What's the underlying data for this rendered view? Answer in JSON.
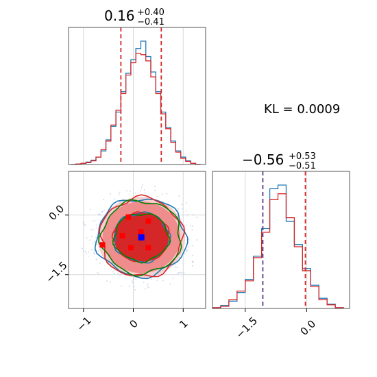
{
  "chart_data": [
    {
      "type": "histogram",
      "panel": "marginal-x",
      "title_main": "0.16",
      "title_plus": "+0.40",
      "title_minus": "−0.41",
      "xlim": [
        -1.3,
        1.45
      ],
      "quantile_lines": [
        -0.25,
        0.16,
        0.56
      ],
      "grid": true,
      "series": [
        {
          "color": "#1f77b4",
          "x": [
            -1.2,
            -1.1,
            -1.0,
            -0.9,
            -0.8,
            -0.7,
            -0.6,
            -0.5,
            -0.4,
            -0.3,
            -0.2,
            -0.1,
            0.0,
            0.1,
            0.2,
            0.3,
            0.4,
            0.5,
            0.6,
            0.7,
            0.8,
            0.9,
            1.0,
            1.1,
            1.2,
            1.3
          ],
          "values": [
            0,
            1,
            2,
            4,
            7,
            12,
            22,
            40,
            62,
            85,
            118,
            148,
            170,
            188,
            200,
            175,
            150,
            118,
            85,
            60,
            38,
            22,
            12,
            6,
            2,
            0
          ]
        },
        {
          "color": "#d62728",
          "x": [
            -1.2,
            -1.1,
            -1.0,
            -0.9,
            -0.8,
            -0.7,
            -0.6,
            -0.5,
            -0.4,
            -0.3,
            -0.2,
            -0.1,
            0.0,
            0.1,
            0.2,
            0.3,
            0.4,
            0.5,
            0.6,
            0.7,
            0.8,
            0.9,
            1.0,
            1.1,
            1.2,
            1.3
          ],
          "values": [
            0,
            1,
            2,
            3,
            6,
            12,
            24,
            38,
            64,
            88,
            115,
            145,
            165,
            180,
            178,
            168,
            142,
            115,
            82,
            58,
            36,
            20,
            10,
            5,
            2,
            0
          ]
        }
      ]
    },
    {
      "type": "contour",
      "panel": "joint",
      "xlim": [
        -1.3,
        1.45
      ],
      "ylim": [
        -2.35,
        1.1
      ],
      "xticks": [
        -1,
        0,
        1
      ],
      "xticklabels": [
        "−1",
        "0",
        "1"
      ],
      "yticks": [
        0.0,
        -1.5
      ],
      "yticklabels": [
        "0.0",
        "−1.5"
      ],
      "grid": true,
      "blue_marker": [
        0.16,
        -0.56
      ],
      "red_markers": [
        [
          -0.62,
          -0.75
        ],
        [
          -0.22,
          -0.52
        ],
        [
          -0.05,
          -0.82
        ],
        [
          0.3,
          -0.82
        ],
        [
          0.3,
          -0.15
        ],
        [
          -0.1,
          -0.05
        ],
        [
          0.15,
          -0.42
        ]
      ],
      "contour_levels": [
        {
          "color": "#1f77b4",
          "rx": 0.9,
          "ry": 0.98
        },
        {
          "color": "#1f77b4",
          "rx": 0.55,
          "ry": 0.62
        },
        {
          "color": "#d62728",
          "rx": 0.82,
          "ry": 1.0
        },
        {
          "color": "#d62728",
          "rx": 0.55,
          "ry": 0.6
        },
        {
          "color": "#008000",
          "rx": 0.8,
          "ry": 0.92
        },
        {
          "color": "#008000",
          "rx": 0.55,
          "ry": 0.6
        }
      ]
    },
    {
      "type": "histogram",
      "panel": "marginal-y",
      "title_main": "−0.56",
      "title_plus": "+0.53",
      "title_minus": "−0.51",
      "xlim": [
        -2.3,
        1.05
      ],
      "xticks": [
        -1.5,
        0.0
      ],
      "xticklabels": [
        "−1.5",
        "0.0"
      ],
      "quantile_lines": [
        -1.07,
        -0.56,
        -0.03
      ],
      "grid": true,
      "series": [
        {
          "color": "#1f77b4",
          "x": [
            -2.2,
            -2.0,
            -1.8,
            -1.6,
            -1.4,
            -1.2,
            -1.0,
            -0.8,
            -0.6,
            -0.4,
            -0.2,
            0.0,
            0.2,
            0.4,
            0.6,
            0.8
          ],
          "values": [
            1,
            4,
            10,
            22,
            40,
            72,
            110,
            165,
            170,
            120,
            88,
            55,
            32,
            14,
            6,
            1
          ]
        },
        {
          "color": "#d62728",
          "x": [
            -2.2,
            -2.0,
            -1.8,
            -1.6,
            -1.4,
            -1.2,
            -1.0,
            -0.8,
            -0.6,
            -0.4,
            -0.2,
            0.0,
            0.2,
            0.4,
            0.6,
            0.8
          ],
          "values": [
            1,
            3,
            12,
            24,
            38,
            70,
            105,
            150,
            158,
            125,
            85,
            52,
            30,
            12,
            5,
            1
          ]
        }
      ]
    }
  ],
  "annotation": "KL = 0.0009"
}
